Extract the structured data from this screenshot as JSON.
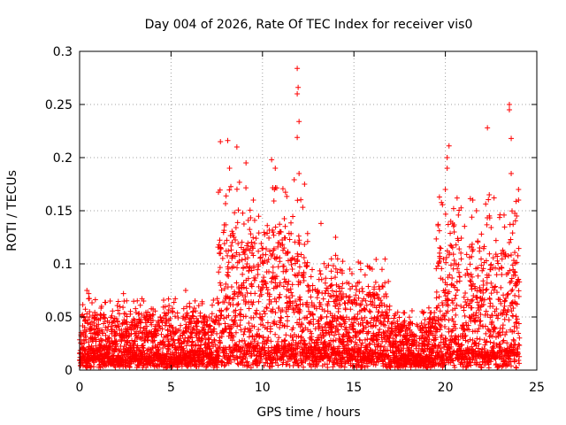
{
  "chart_data": {
    "type": "scatter",
    "title": "Day 004 of 2026, Rate Of TEC Index for receiver vis0",
    "xlabel": "GPS time / hours",
    "ylabel": "ROTI / TECUs",
    "xlim": [
      0,
      25
    ],
    "ylim": [
      0,
      0.3
    ],
    "xticks": [
      0,
      5,
      10,
      15,
      20,
      25
    ],
    "yticks": [
      0,
      0.05,
      0.1,
      0.15,
      0.2,
      0.25,
      0.3
    ],
    "xtick_labels": [
      "0",
      "5",
      "10",
      "15",
      "20",
      "25"
    ],
    "ytick_labels": [
      "0",
      "0.05",
      "0.1",
      "0.15",
      "0.2",
      "0.25",
      "0.3"
    ],
    "grid": true,
    "marker": "+",
    "color": "#ff0000",
    "series": [
      {
        "name": "vis0",
        "notable_points": [
          {
            "x": 0.4,
            "y": 0.075
          },
          {
            "x": 0.5,
            "y": 0.072
          },
          {
            "x": 1.2,
            "y": 0.06
          },
          {
            "x": 2.4,
            "y": 0.072
          },
          {
            "x": 3.5,
            "y": 0.065
          },
          {
            "x": 5.8,
            "y": 0.075
          },
          {
            "x": 7.7,
            "y": 0.215
          },
          {
            "x": 8.1,
            "y": 0.216
          },
          {
            "x": 8.6,
            "y": 0.21
          },
          {
            "x": 8.2,
            "y": 0.19
          },
          {
            "x": 9.1,
            "y": 0.195
          },
          {
            "x": 9.5,
            "y": 0.16
          },
          {
            "x": 10.5,
            "y": 0.198
          },
          {
            "x": 10.7,
            "y": 0.19
          },
          {
            "x": 11.9,
            "y": 0.284
          },
          {
            "x": 11.95,
            "y": 0.266
          },
          {
            "x": 11.9,
            "y": 0.26
          },
          {
            "x": 12.0,
            "y": 0.234
          },
          {
            "x": 11.9,
            "y": 0.219
          },
          {
            "x": 12.0,
            "y": 0.185
          },
          {
            "x": 12.3,
            "y": 0.175
          },
          {
            "x": 13.2,
            "y": 0.138
          },
          {
            "x": 14.0,
            "y": 0.125
          },
          {
            "x": 14.0,
            "y": 0.108
          },
          {
            "x": 16.0,
            "y": 0.095
          },
          {
            "x": 15.2,
            "y": 0.082
          },
          {
            "x": 20.1,
            "y": 0.19
          },
          {
            "x": 20.2,
            "y": 0.211
          },
          {
            "x": 20.1,
            "y": 0.2
          },
          {
            "x": 20.0,
            "y": 0.17
          },
          {
            "x": 21.5,
            "y": 0.16
          },
          {
            "x": 21.7,
            "y": 0.15
          },
          {
            "x": 22.4,
            "y": 0.165
          },
          {
            "x": 22.3,
            "y": 0.228
          },
          {
            "x": 23.5,
            "y": 0.25
          },
          {
            "x": 23.5,
            "y": 0.245
          },
          {
            "x": 23.6,
            "y": 0.218
          },
          {
            "x": 23.6,
            "y": 0.185
          },
          {
            "x": 24.0,
            "y": 0.17
          },
          {
            "x": 24.0,
            "y": 0.16
          },
          {
            "x": 23.9,
            "y": 0.145
          }
        ],
        "envelope": [
          {
            "from": 0.0,
            "to": 7.5,
            "typical_max": 0.045,
            "baseline": 0.01
          },
          {
            "from": 7.5,
            "to": 12.5,
            "typical_max": 0.12,
            "baseline": 0.02
          },
          {
            "from": 12.5,
            "to": 17.0,
            "typical_max": 0.07,
            "baseline": 0.015
          },
          {
            "from": 17.0,
            "to": 19.5,
            "typical_max": 0.04,
            "baseline": 0.01
          },
          {
            "from": 19.5,
            "to": 24.1,
            "typical_max": 0.11,
            "baseline": 0.015
          }
        ]
      }
    ]
  }
}
